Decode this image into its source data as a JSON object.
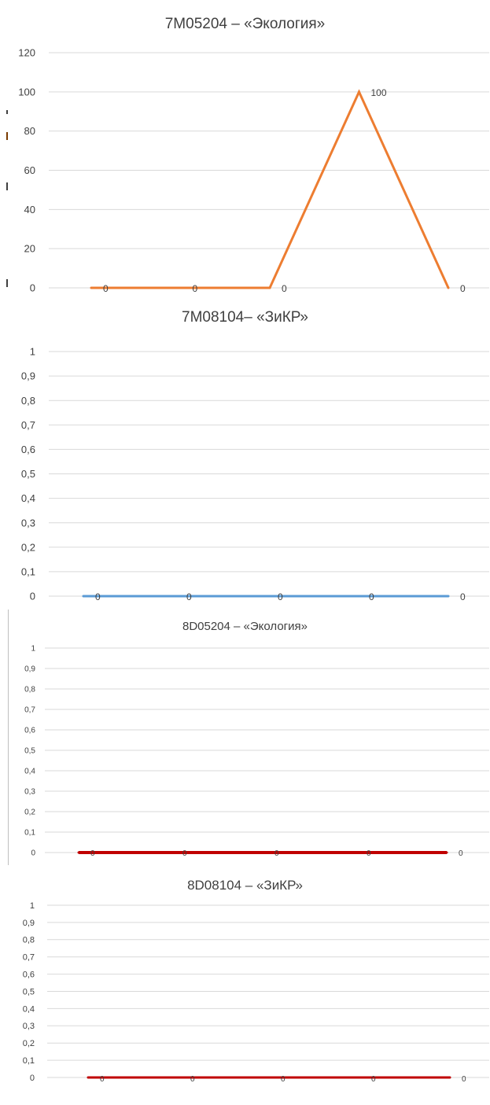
{
  "chart_data": [
    {
      "type": "line",
      "title": "7M05204 – «Экология»",
      "categories": [
        "1",
        "2",
        "3",
        "4",
        "5"
      ],
      "series": [
        {
          "values": [
            0,
            0,
            0,
            100,
            0
          ],
          "color": "#ED7D31",
          "data_labels": [
            "0",
            "0",
            "0",
            "100",
            "0"
          ]
        }
      ],
      "ylim": [
        0,
        120
      ],
      "yticks": [
        0,
        20,
        40,
        60,
        80,
        100,
        120
      ],
      "ytick_labels": [
        "0",
        "20",
        "40",
        "60",
        "80",
        "100",
        "120"
      ],
      "xlabel": "",
      "ylabel": "",
      "grid": true,
      "legend": "none",
      "x_tick_labels_visible": false
    },
    {
      "type": "line",
      "title": "7M08104– «ЗиКР»",
      "categories": [
        "1",
        "2",
        "3",
        "4",
        "5"
      ],
      "series": [
        {
          "values": [
            0,
            0,
            0,
            0,
            0
          ],
          "color": "#5B9BD5",
          "data_labels": [
            "0",
            "0",
            "0",
            "0",
            "0"
          ]
        }
      ],
      "ylim": [
        0,
        1
      ],
      "yticks": [
        0,
        0.1,
        0.2,
        0.3,
        0.4,
        0.5,
        0.6,
        0.7,
        0.8,
        0.9,
        1
      ],
      "ytick_labels": [
        "0",
        "0,1",
        "0,2",
        "0,3",
        "0,4",
        "0,5",
        "0,6",
        "0,7",
        "0,8",
        "0,9",
        "1"
      ],
      "xlabel": "",
      "ylabel": "",
      "grid": true,
      "legend": "none",
      "x_tick_labels_visible": false
    },
    {
      "type": "line",
      "title": "8D05204 – «Экология»",
      "categories": [
        "1",
        "2",
        "3",
        "4",
        "5"
      ],
      "series": [
        {
          "values": [
            0,
            0,
            0,
            0,
            0
          ],
          "color": "#C00000",
          "data_labels": [
            "0",
            "0",
            "0",
            "0",
            "0"
          ]
        }
      ],
      "ylim": [
        0,
        1
      ],
      "yticks": [
        0,
        0.1,
        0.2,
        0.3,
        0.4,
        0.5,
        0.6,
        0.7,
        0.8,
        0.9,
        1
      ],
      "ytick_labels": [
        "0",
        "0,1",
        "0,2",
        "0,3",
        "0,4",
        "0,5",
        "0,6",
        "0,7",
        "0,8",
        "0,9",
        "1"
      ],
      "xlabel": "",
      "ylabel": "",
      "grid": true,
      "legend": "none",
      "x_tick_labels_visible": false
    },
    {
      "type": "line",
      "title": "8D08104 – «ЗиКР»",
      "categories": [
        "1",
        "2",
        "3",
        "4",
        "5"
      ],
      "series": [
        {
          "values": [
            0,
            0,
            0,
            0,
            0
          ],
          "color": "#C00000",
          "data_labels": [
            "0",
            "0",
            "0",
            "0",
            "0"
          ]
        }
      ],
      "ylim": [
        0,
        1
      ],
      "yticks": [
        0,
        0.1,
        0.2,
        0.3,
        0.4,
        0.5,
        0.6,
        0.7,
        0.8,
        0.9,
        1
      ],
      "ytick_labels": [
        "0",
        "0,1",
        "0,2",
        "0,3",
        "0,4",
        "0,5",
        "0,6",
        "0,7",
        "0,8",
        "0,9",
        "1"
      ],
      "xlabel": "",
      "ylabel": "",
      "grid": true,
      "legend": "none",
      "x_tick_labels_visible": false
    }
  ]
}
